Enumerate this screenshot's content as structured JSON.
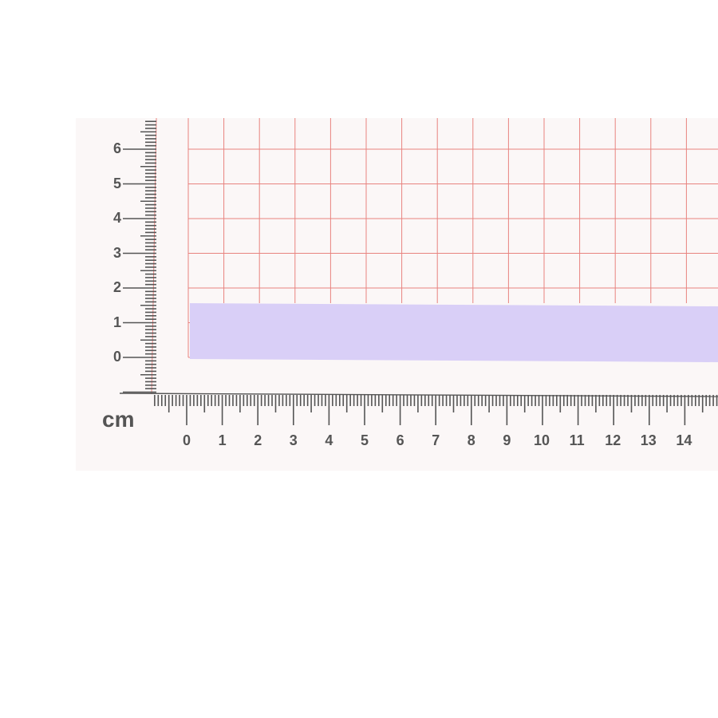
{
  "ruler": {
    "unit": "cm",
    "x_labels": [
      "0",
      "1",
      "2",
      "3",
      "4",
      "5",
      "6",
      "7",
      "8",
      "9",
      "10",
      "11",
      "12",
      "13",
      "14"
    ],
    "y_labels": [
      "0",
      "1",
      "2",
      "3",
      "4",
      "5",
      "6"
    ]
  },
  "colors": {
    "grid": "#e8837f",
    "ribbon": "#d9cff7",
    "board": "#fbf7f7",
    "ink": "#555555"
  },
  "ribbon": {
    "width_cm": 1.5
  }
}
